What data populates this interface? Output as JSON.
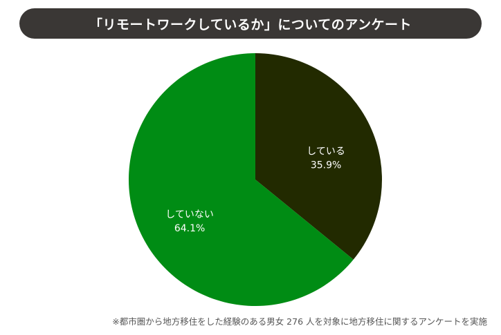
{
  "title": "「リモートワークしているか」についてのアンケート",
  "footnote": "※都市圏から地方移住をした経験のある男女 276 人を対象に地方移住に関するアンケートを実施",
  "colors": {
    "title_bg": "#3a3735",
    "title_text": "#ffffff",
    "slice_label": "#ffffff"
  },
  "chart_data": {
    "type": "pie",
    "title": "「リモートワークしているか」についてのアンケート",
    "slices": [
      {
        "label": "している",
        "value": 35.9,
        "display": "35.9%",
        "color": "#222a00"
      },
      {
        "label": "していない",
        "value": 64.1,
        "display": "64.1%",
        "color": "#008c14"
      }
    ],
    "start_angle": "12 o'clock",
    "direction": "clockwise",
    "legend": "none (labels inside slices)"
  }
}
